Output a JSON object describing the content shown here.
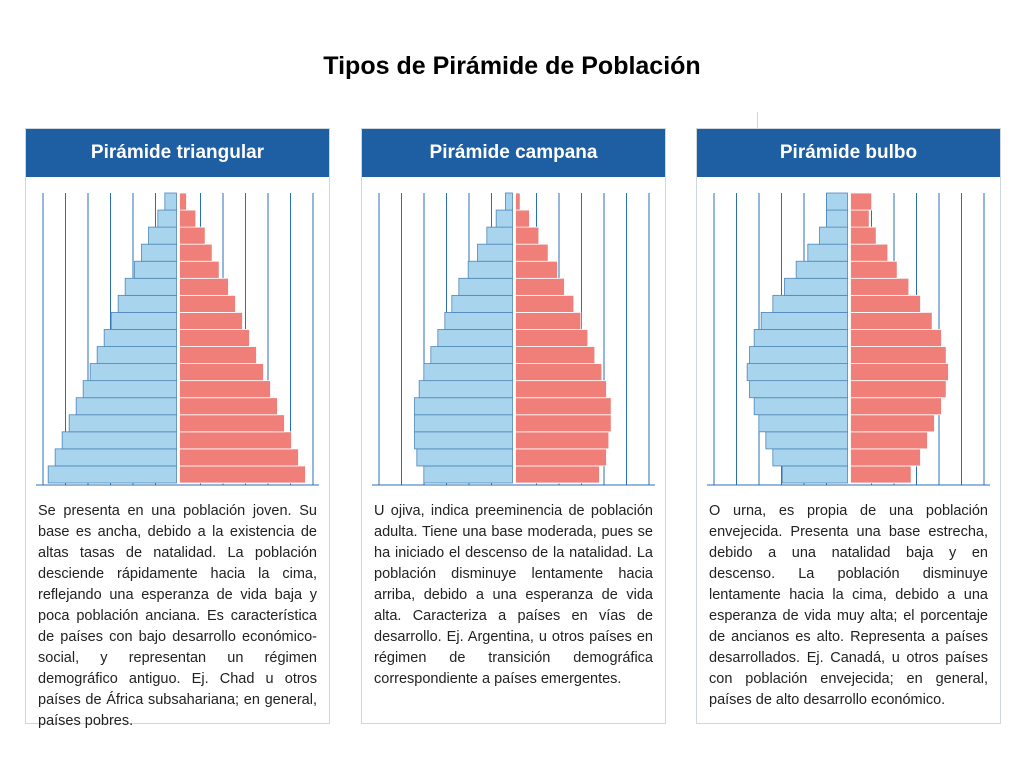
{
  "title": "Tipos de Pirámide de Población",
  "colors": {
    "header": "#1e5ea3",
    "male": "#a9d4ee",
    "female": "#ef7f78",
    "grid": "#2a6fb5"
  },
  "panels": [
    {
      "header": "Pirámide triangular",
      "description": "Se presenta en una población joven. Su base es ancha, debido a la existencia de altas tasas de natalidad. La población desciende rápidamente hacia la cima, reflejando una esperanza de vida baja y poca población anciana. Es característica de países con bajo desarrollo económico-social, y representan un régimen demográfico antiguo. Ej. Chad u otros países de África subsahariana; en general, países pobres."
    },
    {
      "header": "Pirámide campana",
      "description": "U ojiva, indica preeminencia de población adulta. Tiene una base moderada, pues se ha iniciado el descenso de la natalidad. La población disminuye lentamente hacia arriba, debido a una esperanza de vida alta. Caracteriza a países en vías de desarrollo. Ej. Argentina, u otros países en régimen de transición demográfica correspondiente a países emergentes."
    },
    {
      "header": "Pirámide bulbo",
      "description": "O urna, es propia de una población envejecida. Presenta una base estrecha, debido a una natalidad baja y en descenso. La población disminuye lentamente hacia la cima, debido a una esperanza de vida muy alta; el porcentaje de ancianos es alto. Representa a países desarrollados. Ej. Canadá, u otros países con población envejecida; en general, países de alto desarrollo económico."
    }
  ],
  "chart_data": [
    {
      "type": "bar",
      "orientation": "horizontal-population-pyramid",
      "title": "Pirámide triangular",
      "xlim": [
        0,
        6
      ],
      "rows_bottom_to_top": 17,
      "series": [
        {
          "values": [
            5.5,
            5.2,
            4.9,
            4.6,
            4.3,
            4.0,
            3.7,
            3.4,
            3.1,
            2.8,
            2.5,
            2.2,
            1.8,
            1.5,
            1.2,
            0.8,
            0.5
          ]
        },
        {
          "values": [
            5.4,
            5.1,
            4.8,
            4.5,
            4.2,
            3.9,
            3.6,
            3.3,
            3.0,
            2.7,
            2.4,
            2.1,
            1.7,
            1.4,
            1.1,
            0.7,
            0.3
          ]
        }
      ]
    },
    {
      "type": "bar",
      "orientation": "horizontal-population-pyramid",
      "title": "Pirámide campana",
      "xlim": [
        0,
        6
      ],
      "rows_bottom_to_top": 17,
      "series": [
        {
          "values": [
            3.8,
            4.1,
            4.2,
            4.2,
            4.2,
            4.0,
            3.8,
            3.5,
            3.2,
            2.9,
            2.6,
            2.3,
            1.9,
            1.5,
            1.1,
            0.7,
            0.3
          ]
        },
        {
          "values": [
            3.6,
            3.9,
            4.0,
            4.1,
            4.1,
            3.9,
            3.7,
            3.4,
            3.1,
            2.8,
            2.5,
            2.1,
            1.8,
            1.4,
            1.0,
            0.6,
            0.2
          ]
        }
      ]
    },
    {
      "type": "bar",
      "orientation": "horizontal-population-pyramid",
      "title": "Pirámide bulbo",
      "xlim": [
        0,
        6
      ],
      "rows_bottom_to_top": 17,
      "series": [
        {
          "values": [
            2.8,
            3.2,
            3.5,
            3.8,
            4.0,
            4.2,
            4.3,
            4.2,
            4.0,
            3.7,
            3.2,
            2.7,
            2.2,
            1.7,
            1.2,
            0.9,
            0.9
          ]
        },
        {
          "values": [
            2.6,
            3.0,
            3.3,
            3.6,
            3.9,
            4.1,
            4.2,
            4.1,
            3.9,
            3.5,
            3.0,
            2.5,
            2.0,
            1.6,
            1.1,
            0.8,
            0.9
          ]
        }
      ]
    }
  ]
}
